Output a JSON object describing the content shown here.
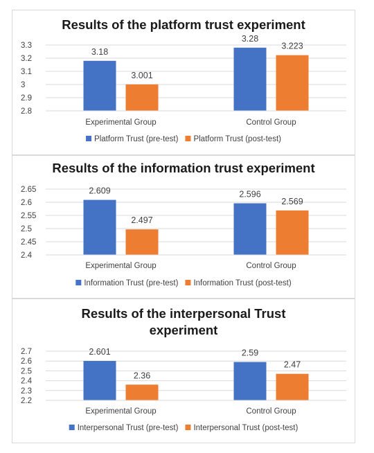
{
  "chart_data": [
    {
      "type": "bar",
      "title_lines": [
        "Results of the platform trust experiment"
      ],
      "categories": [
        "Experimental Group",
        "Control Group"
      ],
      "series": [
        {
          "name": "Platform Trust (pre-test)",
          "values": [
            3.18,
            3.28
          ],
          "labels": [
            "3.18",
            "3.28"
          ],
          "color": "#4472C4"
        },
        {
          "name": "Platform Trust (post-test)",
          "values": [
            3.001,
            3.223
          ],
          "labels": [
            "3.001",
            "3.223"
          ],
          "color": "#ED7D31"
        }
      ],
      "ylim": [
        2.8,
        3.3
      ],
      "yticks": [
        "2.8",
        "2.9",
        "3",
        "3.1",
        "3.2",
        "3.3"
      ],
      "grid": true,
      "legend": "bottom"
    },
    {
      "type": "bar",
      "title_lines": [
        "Results of the information trust experiment"
      ],
      "categories": [
        "Experimental Group",
        "Control Group"
      ],
      "series": [
        {
          "name": "Information Trust (pre-test)",
          "values": [
            2.609,
            2.596
          ],
          "labels": [
            "2.609",
            "2.596"
          ],
          "color": "#4472C4"
        },
        {
          "name": "Information Trust (post-test)",
          "values": [
            2.497,
            2.569
          ],
          "labels": [
            "2.497",
            "2.569"
          ],
          "color": "#ED7D31"
        }
      ],
      "ylim": [
        2.4,
        2.65
      ],
      "yticks": [
        "2.4",
        "2.45",
        "2.5",
        "2.55",
        "2.6",
        "2.65"
      ],
      "grid": true,
      "legend": "bottom"
    },
    {
      "type": "bar",
      "title_lines": [
        "Results of the interpersonal Trust",
        "experiment"
      ],
      "categories": [
        "Experimental Group",
        "Control Group"
      ],
      "series": [
        {
          "name": "Interpersonal Trust (pre-test)",
          "values": [
            2.601,
            2.59
          ],
          "labels": [
            "2.601",
            "2.59"
          ],
          "color": "#4472C4"
        },
        {
          "name": "Interpersonal Trust (post-test)",
          "values": [
            2.36,
            2.47
          ],
          "labels": [
            "2.36",
            "2.47"
          ],
          "color": "#ED7D31"
        }
      ],
      "ylim": [
        2.2,
        2.7
      ],
      "yticks": [
        "2.2",
        "2.3",
        "2.4",
        "2.5",
        "2.6",
        "2.7"
      ],
      "grid": true,
      "legend": "bottom"
    }
  ]
}
